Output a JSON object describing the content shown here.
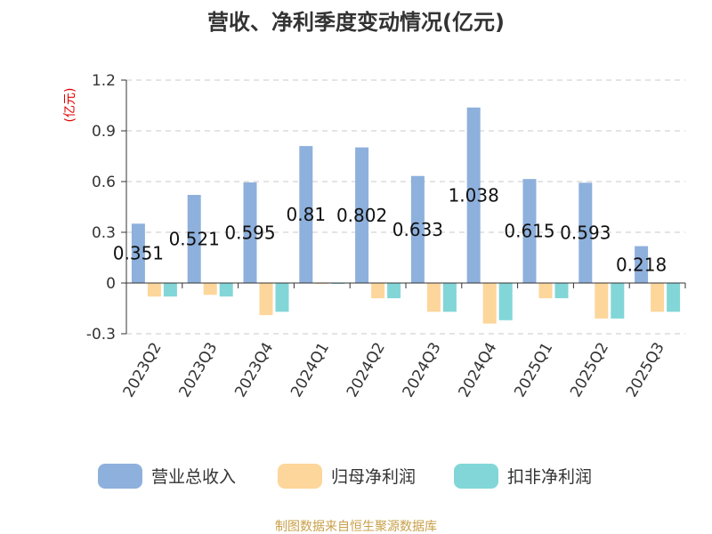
{
  "chart_data": {
    "type": "bar",
    "title": "营收、净利季度变动情况(亿元)",
    "unit": "(亿元)",
    "categories": [
      "2023Q2",
      "2023Q3",
      "2023Q4",
      "2024Q1",
      "2024Q2",
      "2024Q3",
      "2024Q4",
      "2025Q1",
      "2025Q2",
      "2025Q3"
    ],
    "series": [
      {
        "name": "营业总收入",
        "color": "#8eb0dc",
        "values": [
          0.351,
          0.521,
          0.595,
          0.81,
          0.802,
          0.633,
          1.038,
          0.615,
          0.593,
          0.218
        ],
        "labels": [
          "0.351",
          "0.521",
          "0.595",
          "0.81",
          "0.802",
          "0.633",
          "1.038",
          "0.615",
          "0.593",
          "0.218"
        ]
      },
      {
        "name": "归母净利润",
        "color": "#fdd69b",
        "values": [
          -0.08,
          -0.07,
          -0.19,
          0.0,
          -0.09,
          -0.17,
          -0.24,
          -0.09,
          -0.21,
          -0.17
        ]
      },
      {
        "name": "扣非净利润",
        "color": "#82d6d7",
        "values": [
          -0.08,
          -0.08,
          -0.17,
          0.0,
          -0.09,
          -0.17,
          -0.22,
          -0.09,
          -0.21,
          -0.17
        ]
      }
    ],
    "yticks": [
      "1.2",
      "0.9",
      "0.6",
      "0.3",
      "0",
      "-0.3"
    ],
    "ytick_values": [
      1.2,
      0.9,
      0.6,
      0.3,
      0,
      -0.3
    ],
    "ylim": [
      -0.3,
      1.2
    ],
    "grid": true,
    "legend_position": "bottom"
  },
  "source": "制图数据来自恒生聚源数据库"
}
